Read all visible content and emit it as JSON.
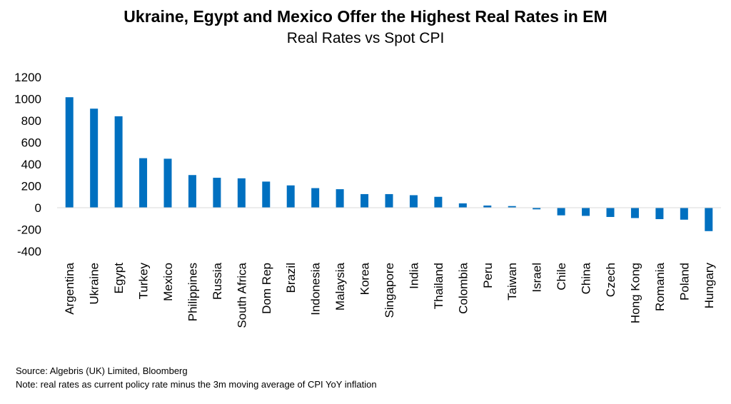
{
  "chart_data": {
    "type": "bar",
    "title": "Ukraine, Egypt and Mexico Offer the Highest Real Rates in EM",
    "subtitle": "Real Rates vs Spot CPI",
    "categories": [
      "Argentina",
      "Ukraine",
      "Egypt",
      "Turkey",
      "Mexico",
      "Philippines",
      "Russia",
      "South Africa",
      "Dom Rep",
      "Brazil",
      "Indonesia",
      "Malaysia",
      "Korea",
      "Singapore",
      "India",
      "Thailand",
      "Colombia",
      "Peru",
      "Taiwan",
      "Israel",
      "Chile",
      "China",
      "Czech",
      "Hong Kong",
      "Romania",
      "Poland",
      "Hungary"
    ],
    "series": [
      {
        "values": [
          1015,
          910,
          840,
          455,
          450,
          300,
          275,
          270,
          240,
          205,
          180,
          170,
          125,
          125,
          115,
          100,
          40,
          20,
          15,
          -15,
          -70,
          -75,
          -85,
          -95,
          -105,
          -110,
          -215
        ]
      }
    ],
    "ylim": [
      -400,
      1200
    ],
    "yticks": [
      -400,
      -200,
      0,
      200,
      400,
      600,
      800,
      1000,
      1200
    ],
    "bar_color": "#0070C0",
    "gridlines": false
  },
  "footer": {
    "source": "Source: Algebris (UK) Limited, Bloomberg",
    "note": "Note: real rates as current policy rate minus the 3m moving average of CPI YoY inflation"
  }
}
